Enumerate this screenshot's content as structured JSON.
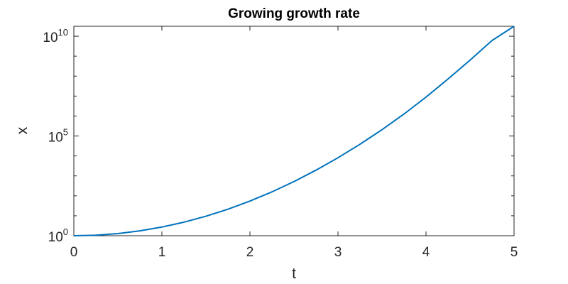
{
  "chart_data": {
    "type": "line",
    "title": "Growing growth rate",
    "xlabel": "t",
    "ylabel": "x",
    "xlim": [
      0,
      5
    ],
    "ylim": [
      1,
      31622776601
    ],
    "yscale": "log",
    "grid": false,
    "x_ticks": [
      "0",
      "1",
      "2",
      "3",
      "4",
      "5"
    ],
    "y_ticks": [
      {
        "base": "10",
        "exp": "0"
      },
      {
        "base": "10",
        "exp": "5"
      },
      {
        "base": "10",
        "exp": "10"
      }
    ],
    "series": [
      {
        "color": "#0072BD",
        "x": [
          0,
          0.25,
          0.5,
          0.75,
          1,
          1.25,
          1.5,
          1.75,
          2,
          2.25,
          2.5,
          2.75,
          3,
          3.25,
          3.5,
          3.75,
          4,
          4.25,
          4.5,
          4.75,
          5
        ],
        "y": [
          1,
          1.06,
          1.28,
          1.75,
          2.72,
          4.77,
          9.49,
          21.3,
          54.6,
          158,
          518,
          1930,
          8100,
          38500,
          207000,
          1260000,
          8890000,
          72000000,
          629000000,
          6120000000,
          31600000000
        ]
      }
    ]
  }
}
